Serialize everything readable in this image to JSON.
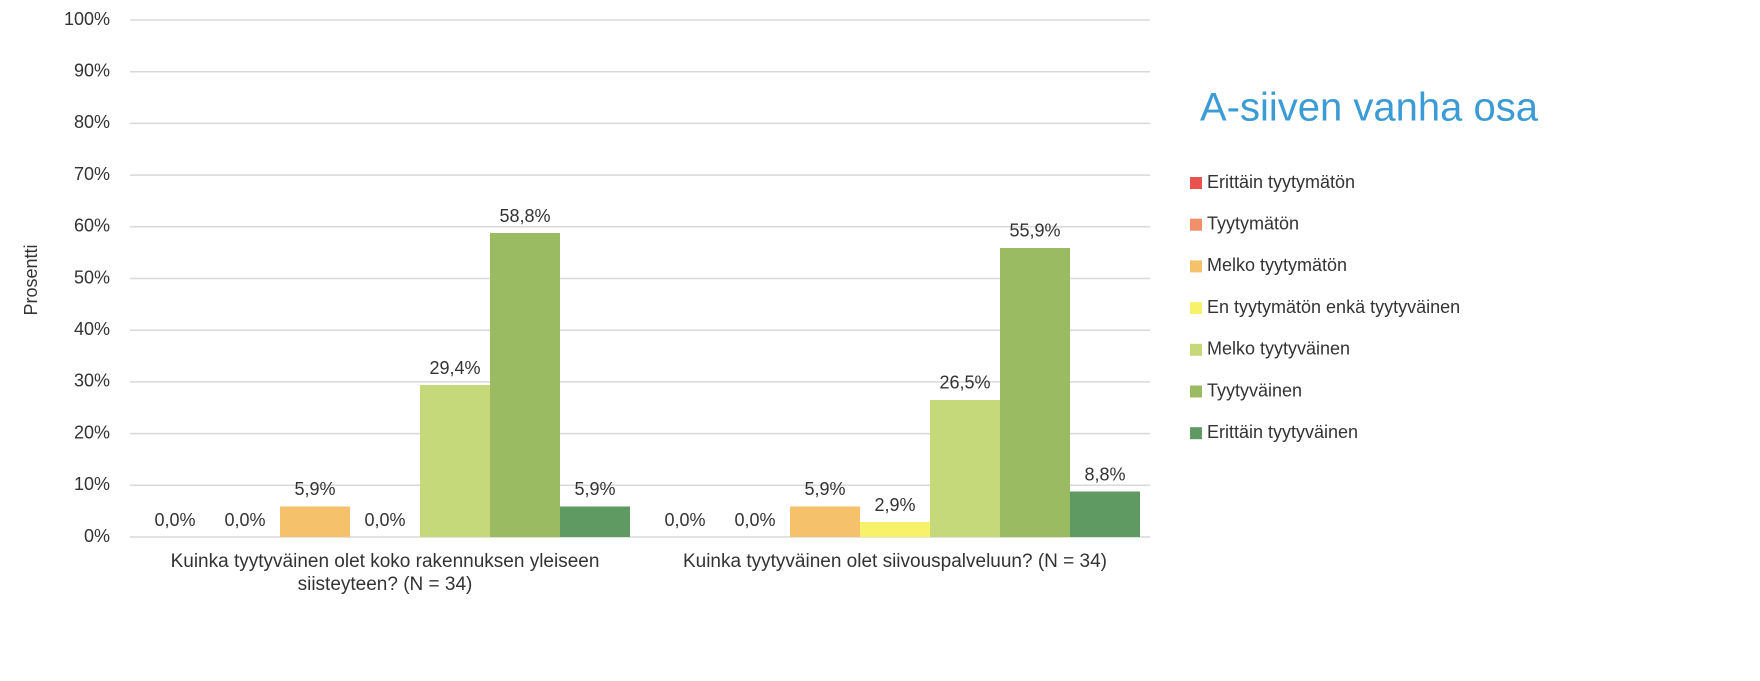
{
  "chart_data": {
    "type": "bar",
    "title": "A-siiven vanha osa",
    "y_label": "Prosentti",
    "categories": [
      "Kuinka tyytyväinen olet koko rakennuksen yleiseen siisteyteen? (N = 34)",
      "Kuinka tyytyväinen olet siivouspalveluun? (N = 34)"
    ],
    "series": [
      {
        "name": "Erittäin tyytymätön",
        "color": "#e8534f",
        "values": [
          0,
          0
        ],
        "value_labels": [
          "0,0%",
          "0,0%"
        ]
      },
      {
        "name": "Tyytymätön",
        "color": "#f0906a",
        "values": [
          0,
          0
        ],
        "value_labels": [
          "0,0%",
          "0,0%"
        ]
      },
      {
        "name": "Melko tyytymätön",
        "color": "#f5c26b",
        "values": [
          5.9,
          5.9
        ],
        "value_labels": [
          "5,9%",
          "5,9%"
        ]
      },
      {
        "name": "En tyytymätön enkä tyytyväinen",
        "color": "#f7f26a",
        "values": [
          0,
          2.9
        ],
        "value_labels": [
          "0,0%",
          "2,9%"
        ]
      },
      {
        "name": "Melko tyytyväinen",
        "color": "#c5d97a",
        "values": [
          29.4,
          26.5
        ],
        "value_labels": [
          "29,4%",
          "26,5%"
        ]
      },
      {
        "name": "Tyytyväinen",
        "color": "#9bbb63",
        "values": [
          58.8,
          55.9
        ],
        "value_labels": [
          "58,8%",
          "55,9%"
        ]
      },
      {
        "name": "Erittäin tyytyväinen",
        "color": "#5f9a62",
        "values": [
          5.9,
          8.8
        ],
        "value_labels": [
          "5,9%",
          "8,8%"
        ]
      }
    ],
    "ylim": [
      0,
      100
    ],
    "yticks": [
      {
        "value": 0,
        "label": "0%"
      },
      {
        "value": 10,
        "label": "10%"
      },
      {
        "value": 20,
        "label": "20%"
      },
      {
        "value": 30,
        "label": "30%"
      },
      {
        "value": 40,
        "label": "40%"
      },
      {
        "value": 50,
        "label": "50%"
      },
      {
        "value": 60,
        "label": "60%"
      },
      {
        "value": 70,
        "label": "70%"
      },
      {
        "value": 80,
        "label": "80%"
      },
      {
        "value": 90,
        "label": "90%"
      },
      {
        "value": 100,
        "label": "100%"
      }
    ],
    "grid": true,
    "legend": "right"
  }
}
